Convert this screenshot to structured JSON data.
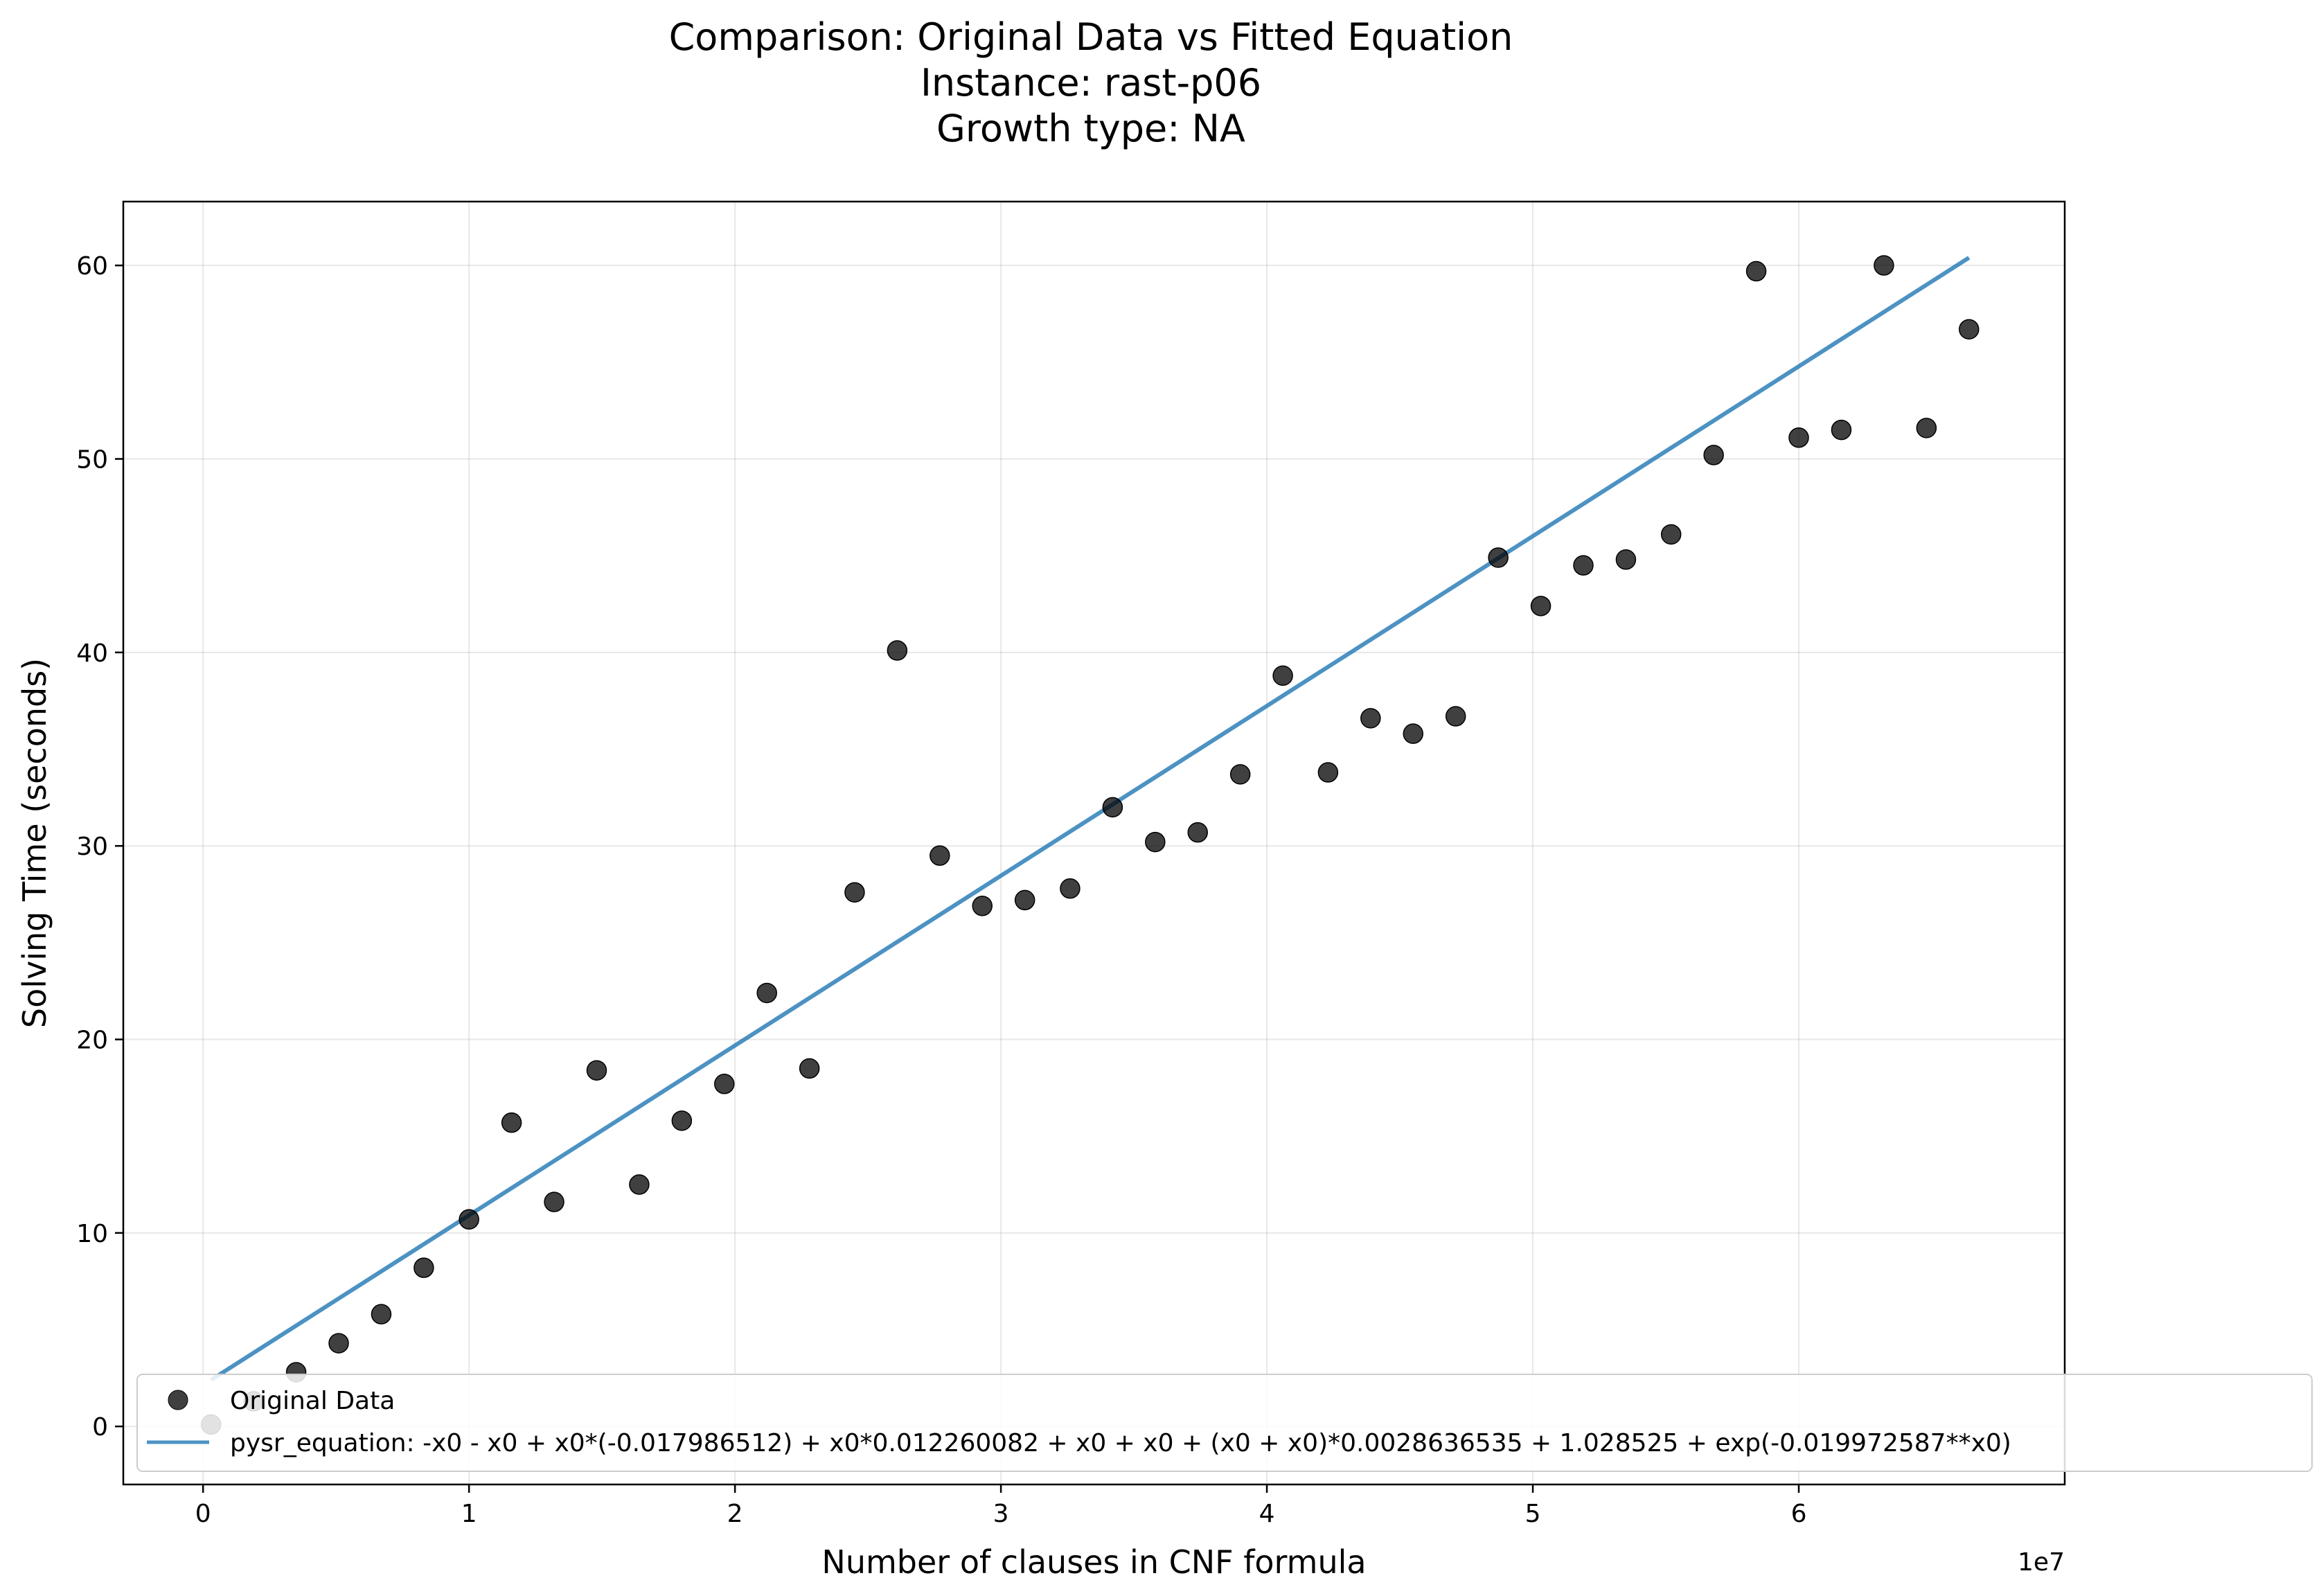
{
  "chart_data": {
    "type": "scatter",
    "title_lines": [
      "Comparison: Original Data vs Fitted Equation",
      "Instance: rast-p06",
      "Growth type: NA"
    ],
    "xlabel": "Number of clauses in CNF formula",
    "ylabel": "Solving Time (seconds)",
    "x_offset_label": "1e7",
    "x_scale": 10000000,
    "xlim": [
      -3000000,
      70000000
    ],
    "ylim": [
      -3,
      63.3
    ],
    "xticks": [
      0,
      10000000,
      20000000,
      30000000,
      40000000,
      50000000,
      60000000
    ],
    "xtick_labels": [
      "0",
      "1",
      "2",
      "3",
      "4",
      "5",
      "6"
    ],
    "yticks": [
      0,
      10,
      20,
      30,
      40,
      50,
      60
    ],
    "ytick_labels": [
      "0",
      "10",
      "20",
      "30",
      "40",
      "50",
      "60"
    ],
    "grid": true,
    "legend_position": "lower-left",
    "series": [
      {
        "name": "Original Data",
        "kind": "scatter",
        "color": "#000000",
        "x": [
          300000,
          1900000,
          3500000,
          5100000,
          6700000,
          8300000,
          10000000,
          11600000,
          13200000,
          14800000,
          16400000,
          18000000,
          19600000,
          21200000,
          22800000,
          24500000,
          26100000,
          27700000,
          29300000,
          30900000,
          32600000,
          34200000,
          35800000,
          37400000,
          39000000,
          40600000,
          42300000,
          43900000,
          45500000,
          47100000,
          48700000,
          50300000,
          51900000,
          53500000,
          55200000,
          56800000,
          58400000,
          60000000,
          61600000,
          63200000,
          64800000,
          66400000
        ],
        "y": [
          0.1,
          1.3,
          2.8,
          4.3,
          5.8,
          8.2,
          10.7,
          15.7,
          11.6,
          18.4,
          12.5,
          15.8,
          17.7,
          22.4,
          18.5,
          27.6,
          40.1,
          29.5,
          26.9,
          27.2,
          27.8,
          32.0,
          30.2,
          30.7,
          33.7,
          38.8,
          33.8,
          36.6,
          35.8,
          36.7,
          44.9,
          42.4,
          44.5,
          44.8,
          46.1,
          50.2,
          59.7,
          51.1,
          51.5,
          60.0,
          51.6,
          56.7
        ]
      },
      {
        "name": "pysr_equation: -x0 - x0 + x0*(-0.017986512) + x0*0.012260082 + x0 + x0 + (x0 + x0)*0.0028636535 + 1.028525 + exp(-0.019972587**x0)",
        "kind": "line",
        "color": "#1f77b4",
        "x": [
          300000,
          66400000
        ],
        "y": [
          2.4,
          60.4
        ]
      }
    ]
  }
}
